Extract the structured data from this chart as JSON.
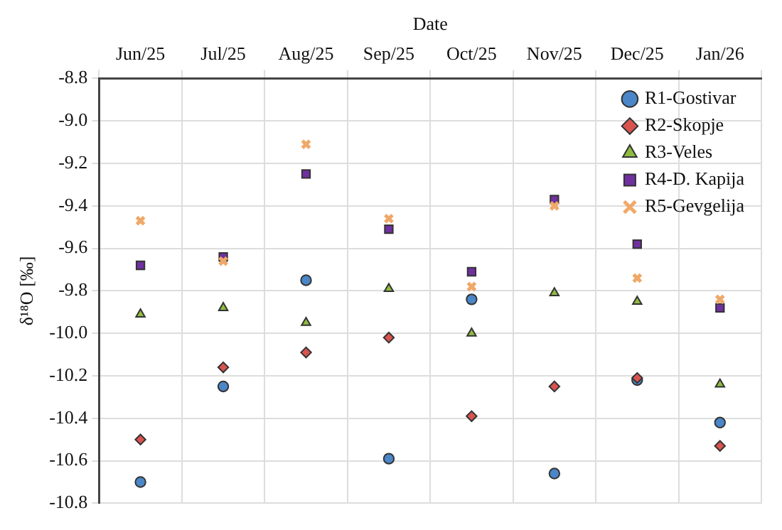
{
  "chart_data": {
    "type": "scatter",
    "xlabel": "Date",
    "ylabel": "δ¹⁸O [‰]",
    "categories": [
      "Jun/25",
      "Jul/25",
      "Aug/25",
      "Sep/25",
      "Oct/25",
      "Nov/25",
      "Dec/25",
      "Jan/26"
    ],
    "series": [
      {
        "name": "R1-Gostivar",
        "color": "#4a86c8",
        "marker": "circle",
        "values": [
          -10.7,
          -10.25,
          -9.75,
          -10.59,
          -9.84,
          -10.66,
          -10.22,
          -10.42
        ]
      },
      {
        "name": "R2-Skopje",
        "color": "#d9534f",
        "marker": "diamond",
        "values": [
          -10.5,
          -10.16,
          -10.09,
          -10.02,
          -10.39,
          -10.25,
          -10.21,
          -10.53
        ]
      },
      {
        "name": "R3-Veles",
        "color": "#8fbc3f",
        "marker": "triangle",
        "values": [
          -9.91,
          -9.88,
          -9.95,
          -9.79,
          -10.0,
          -9.81,
          -9.85,
          -10.24
        ]
      },
      {
        "name": "R4-D. Kapija",
        "color": "#7030a0",
        "marker": "square",
        "values": [
          -9.68,
          -9.64,
          -9.25,
          -9.51,
          -9.71,
          -9.37,
          -9.58,
          -9.88
        ]
      },
      {
        "name": "R5-Gevgelija",
        "color": "#f0a868",
        "marker": "cross",
        "values": [
          -9.47,
          -9.66,
          -9.11,
          -9.46,
          -9.78,
          -9.4,
          -9.74,
          -9.84
        ]
      }
    ],
    "ylim": [
      -10.8,
      -8.8
    ],
    "yticks": [
      {
        "value": -10.8,
        "label": "-10.8"
      },
      {
        "value": -10.6,
        "label": "-10.6"
      },
      {
        "value": -10.4,
        "label": "-10.4"
      },
      {
        "value": -10.2,
        "label": "-10.2"
      },
      {
        "value": -10,
        "label": "-10.0"
      },
      {
        "value": -9.8,
        "label": "-9.8"
      },
      {
        "value": -9.6,
        "label": "-9.6"
      },
      {
        "value": -9.4,
        "label": "-9.4"
      },
      {
        "value": -9.2,
        "label": "-9.2"
      },
      {
        "value": -9,
        "label": "-9.0"
      },
      {
        "value": -8.8,
        "label": "-8.8"
      }
    ],
    "grid": true,
    "legend": "top right"
  }
}
